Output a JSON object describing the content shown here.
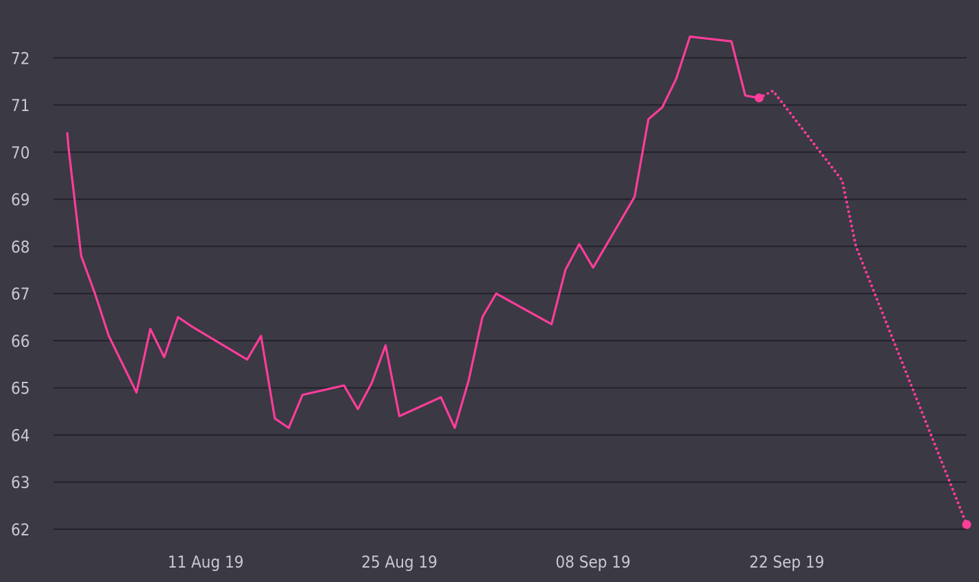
{
  "chart_data": {
    "type": "line",
    "title": "",
    "xlabel": "",
    "ylabel": "",
    "ylim": [
      62,
      72.5
    ],
    "yticks": [
      62,
      63,
      64,
      65,
      66,
      67,
      68,
      69,
      70,
      71,
      72
    ],
    "xticks": [
      {
        "label": "11 Aug 19",
        "date": "2019-08-11"
      },
      {
        "label": "25 Aug 19",
        "date": "2019-08-25"
      },
      {
        "label": "08 Sep 19",
        "date": "2019-09-08"
      },
      {
        "label": "22 Sep 19",
        "date": "2019-09-22"
      }
    ],
    "xlim": [
      "2019-07-31",
      "2019-10-05"
    ],
    "grid": true,
    "legend": "none",
    "colors": {
      "background": "#3a3944",
      "line": "#ff3d9a",
      "grid": "#23222b",
      "text": "#c9c8d2"
    },
    "series": [
      {
        "style": "solid",
        "points": [
          [
            "2019-08-01T00:00",
            70.4
          ],
          [
            "2019-08-01T02:00",
            70.1
          ],
          [
            "2019-08-02",
            67.8
          ],
          [
            "2019-08-03",
            67.0
          ],
          [
            "2019-08-04",
            66.1
          ],
          [
            "2019-08-06",
            64.9
          ],
          [
            "2019-08-07",
            66.25
          ],
          [
            "2019-08-08",
            65.65
          ],
          [
            "2019-08-09",
            66.5
          ],
          [
            "2019-08-10",
            66.3
          ],
          [
            "2019-08-14",
            65.6
          ],
          [
            "2019-08-15",
            66.1
          ],
          [
            "2019-08-16",
            64.35
          ],
          [
            "2019-08-17",
            64.15
          ],
          [
            "2019-08-18",
            64.85
          ],
          [
            "2019-08-21",
            65.05
          ],
          [
            "2019-08-22",
            64.55
          ],
          [
            "2019-08-23",
            65.1
          ],
          [
            "2019-08-24",
            65.9
          ],
          [
            "2019-08-25",
            64.4
          ],
          [
            "2019-08-28",
            64.8
          ],
          [
            "2019-08-29",
            64.15
          ],
          [
            "2019-08-30",
            65.15
          ],
          [
            "2019-08-31",
            66.5
          ],
          [
            "2019-09-01",
            67.0
          ],
          [
            "2019-09-05",
            66.35
          ],
          [
            "2019-09-06",
            67.5
          ],
          [
            "2019-09-07",
            68.05
          ],
          [
            "2019-09-08",
            67.55
          ],
          [
            "2019-09-11",
            69.05
          ],
          [
            "2019-09-12",
            70.7
          ],
          [
            "2019-09-13",
            70.95
          ],
          [
            "2019-09-14",
            71.55
          ],
          [
            "2019-09-15",
            72.45
          ],
          [
            "2019-09-18",
            72.35
          ],
          [
            "2019-09-19",
            71.2
          ],
          [
            "2019-09-20",
            71.15
          ]
        ]
      },
      {
        "style": "dotted",
        "points": [
          [
            "2019-09-20",
            71.15
          ],
          [
            "2019-09-21",
            71.3
          ],
          [
            "2019-09-26",
            69.4
          ],
          [
            "2019-09-27",
            68.0
          ],
          [
            "2019-10-05",
            62.1
          ]
        ]
      }
    ],
    "markers": [
      [
        "2019-09-20",
        71.15
      ],
      [
        "2019-10-05",
        62.1
      ]
    ]
  }
}
